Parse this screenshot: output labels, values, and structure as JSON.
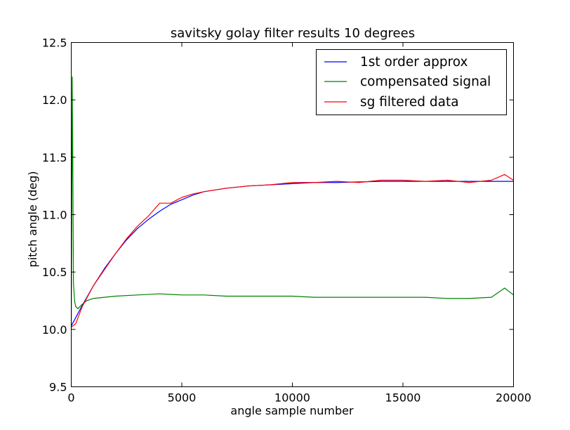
{
  "chart_data": {
    "type": "line",
    "title": "savitsky golay filter results 10 degrees",
    "xlabel": "angle sample number",
    "ylabel": "pitch angle (deg)",
    "xlim": [
      0,
      20000
    ],
    "ylim": [
      9.5,
      12.5
    ],
    "xticks": [
      0,
      5000,
      10000,
      15000,
      20000
    ],
    "yticks": [
      9.5,
      10.0,
      10.5,
      11.0,
      11.5,
      12.0,
      12.5
    ],
    "xtick_labels": [
      "0",
      "5000",
      "10000",
      "15000",
      "20000"
    ],
    "ytick_labels": [
      "9.5",
      "10.0",
      "10.5",
      "11.0",
      "11.5",
      "12.0",
      "12.5"
    ],
    "grid": false,
    "legend_position": "top-right",
    "series": [
      {
        "name": "1st order approx",
        "color": "#0000ff",
        "x": [
          0,
          500,
          1000,
          1500,
          2000,
          2500,
          3000,
          3500,
          4000,
          4500,
          5000,
          5500,
          6000,
          7000,
          8000,
          9000,
          10000,
          11000,
          12000,
          14000,
          16000,
          18000,
          20000
        ],
        "values": [
          10.03,
          10.21,
          10.38,
          10.53,
          10.66,
          10.78,
          10.88,
          10.96,
          11.03,
          11.09,
          11.13,
          11.17,
          11.2,
          11.23,
          11.25,
          11.26,
          11.27,
          11.28,
          11.28,
          11.29,
          11.29,
          11.29,
          11.29
        ]
      },
      {
        "name": "compensated signal",
        "color": "#008000",
        "x": [
          0,
          50,
          100,
          150,
          200,
          300,
          400,
          500,
          700,
          1000,
          1500,
          2000,
          3000,
          4000,
          5000,
          6000,
          7000,
          8000,
          9000,
          10000,
          11000,
          12000,
          13000,
          14000,
          15000,
          16000,
          17000,
          18000,
          19000,
          19600,
          20000
        ],
        "values": [
          10.0,
          12.2,
          10.4,
          10.25,
          10.2,
          10.18,
          10.2,
          10.22,
          10.25,
          10.27,
          10.28,
          10.29,
          10.3,
          10.31,
          10.3,
          10.3,
          10.29,
          10.29,
          10.29,
          10.29,
          10.28,
          10.28,
          10.28,
          10.28,
          10.28,
          10.28,
          10.27,
          10.27,
          10.28,
          10.36,
          10.3
        ]
      },
      {
        "name": "sg filtered data",
        "color": "#ff0000",
        "x": [
          0,
          200,
          500,
          1000,
          1500,
          2000,
          2500,
          3000,
          3500,
          4000,
          4500,
          5000,
          5500,
          6000,
          7000,
          8000,
          9000,
          10000,
          11000,
          12000,
          13000,
          14000,
          15000,
          16000,
          17000,
          18000,
          19000,
          19600,
          20000
        ],
        "values": [
          10.02,
          10.05,
          10.2,
          10.38,
          10.52,
          10.66,
          10.79,
          10.9,
          10.99,
          11.1,
          11.1,
          11.15,
          11.18,
          11.2,
          11.23,
          11.25,
          11.26,
          11.28,
          11.28,
          11.29,
          11.28,
          11.3,
          11.3,
          11.29,
          11.3,
          11.28,
          11.3,
          11.35,
          11.3
        ]
      }
    ]
  }
}
